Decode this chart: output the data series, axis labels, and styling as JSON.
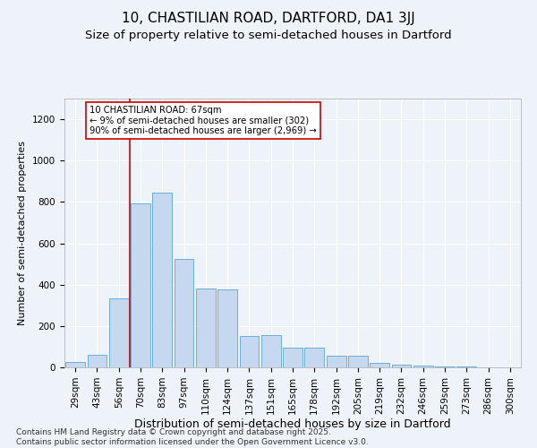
{
  "title1": "10, CHASTILIAN ROAD, DARTFORD, DA1 3JJ",
  "title2": "Size of property relative to semi-detached houses in Dartford",
  "xlabel": "Distribution of semi-detached houses by size in Dartford",
  "ylabel": "Number of semi-detached properties",
  "categories": [
    "29sqm",
    "43sqm",
    "56sqm",
    "70sqm",
    "83sqm",
    "97sqm",
    "110sqm",
    "124sqm",
    "137sqm",
    "151sqm",
    "165sqm",
    "178sqm",
    "192sqm",
    "205sqm",
    "219sqm",
    "232sqm",
    "246sqm",
    "259sqm",
    "273sqm",
    "286sqm",
    "300sqm"
  ],
  "values": [
    27,
    60,
    335,
    795,
    845,
    525,
    380,
    375,
    150,
    155,
    97,
    97,
    57,
    57,
    20,
    15,
    8,
    5,
    3,
    2,
    1
  ],
  "bar_color": "#c5d8f0",
  "bar_edge_color": "#6baed6",
  "vline_color": "#cc0000",
  "annotation_text": "10 CHASTILIAN ROAD: 67sqm\n← 9% of semi-detached houses are smaller (302)\n90% of semi-detached houses are larger (2,969) →",
  "annotation_box_color": "#ffffff",
  "annotation_box_edge": "#cc0000",
  "ylim": [
    0,
    1300
  ],
  "yticks": [
    0,
    200,
    400,
    600,
    800,
    1000,
    1200
  ],
  "background_color": "#eef2f9",
  "grid_color": "#ffffff",
  "footer": "Contains HM Land Registry data © Crown copyright and database right 2025.\nContains public sector information licensed under the Open Government Licence v3.0.",
  "title1_fontsize": 11,
  "title2_fontsize": 9.5,
  "xlabel_fontsize": 9,
  "ylabel_fontsize": 8,
  "tick_fontsize": 7.5,
  "footer_fontsize": 6.5
}
